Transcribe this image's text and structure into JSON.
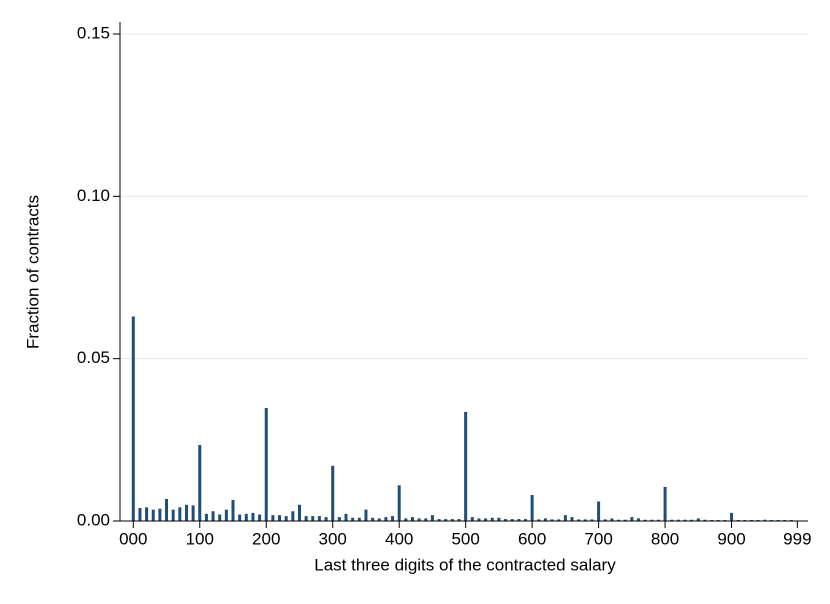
{
  "chart_data": {
    "type": "bar",
    "x_label": "Last three digits of the contracted salary",
    "y_label": "Fraction of contracts",
    "color": "#1f4e79",
    "grid": true,
    "x": [
      0,
      10,
      20,
      30,
      40,
      50,
      60,
      70,
      80,
      90,
      100,
      110,
      120,
      130,
      140,
      150,
      160,
      170,
      180,
      190,
      200,
      210,
      220,
      230,
      240,
      250,
      260,
      270,
      280,
      290,
      300,
      310,
      320,
      330,
      340,
      350,
      360,
      370,
      380,
      390,
      400,
      410,
      420,
      430,
      440,
      450,
      460,
      470,
      480,
      490,
      500,
      510,
      520,
      530,
      540,
      550,
      560,
      570,
      580,
      590,
      600,
      610,
      620,
      630,
      640,
      650,
      660,
      670,
      680,
      690,
      700,
      710,
      720,
      730,
      740,
      750,
      760,
      770,
      780,
      790,
      800,
      810,
      820,
      830,
      840,
      850,
      860,
      870,
      880,
      890,
      900,
      910,
      920,
      930,
      940,
      950,
      960,
      970,
      980,
      990
    ],
    "values": [
      0.063,
      0.004,
      0.0042,
      0.0035,
      0.0038,
      0.0068,
      0.0035,
      0.0042,
      0.005,
      0.0048,
      0.0234,
      0.0022,
      0.003,
      0.002,
      0.0035,
      0.0065,
      0.002,
      0.0022,
      0.0025,
      0.002,
      0.0348,
      0.0018,
      0.0018,
      0.0015,
      0.003,
      0.005,
      0.0015,
      0.0015,
      0.0015,
      0.0012,
      0.017,
      0.0012,
      0.0022,
      0.001,
      0.001,
      0.0035,
      0.001,
      0.0008,
      0.0012,
      0.0015,
      0.011,
      0.0008,
      0.0012,
      0.0008,
      0.0008,
      0.0018,
      0.0006,
      0.0006,
      0.0006,
      0.0006,
      0.0336,
      0.0012,
      0.0008,
      0.0008,
      0.001,
      0.001,
      0.0006,
      0.0006,
      0.0006,
      0.0006,
      0.008,
      0.0005,
      0.0008,
      0.0005,
      0.0005,
      0.0018,
      0.0012,
      0.0005,
      0.0005,
      0.0005,
      0.006,
      0.0005,
      0.0008,
      0.0004,
      0.0004,
      0.0012,
      0.0008,
      0.0004,
      0.0004,
      0.0004,
      0.0105,
      0.0004,
      0.0004,
      0.0004,
      0.0004,
      0.0008,
      0.0004,
      0.0003,
      0.0003,
      0.0003,
      0.0025,
      0.0003,
      0.0003,
      0.0003,
      0.0003,
      0.0004,
      0.0003,
      0.0003,
      0.0003,
      0.0003
    ],
    "xlim": [
      -20,
      1015
    ],
    "ylim": [
      0,
      0.15
    ],
    "xticks": [
      {
        "value": 0,
        "label": "000"
      },
      100,
      200,
      300,
      400,
      500,
      600,
      700,
      800,
      900,
      999
    ],
    "yticks": [
      {
        "value": 0,
        "label": "0.00"
      },
      {
        "value": 0.05,
        "label": "0.05"
      },
      {
        "value": 0.1,
        "label": "0.10"
      },
      {
        "value": 0.15,
        "label": "0.15"
      }
    ]
  }
}
